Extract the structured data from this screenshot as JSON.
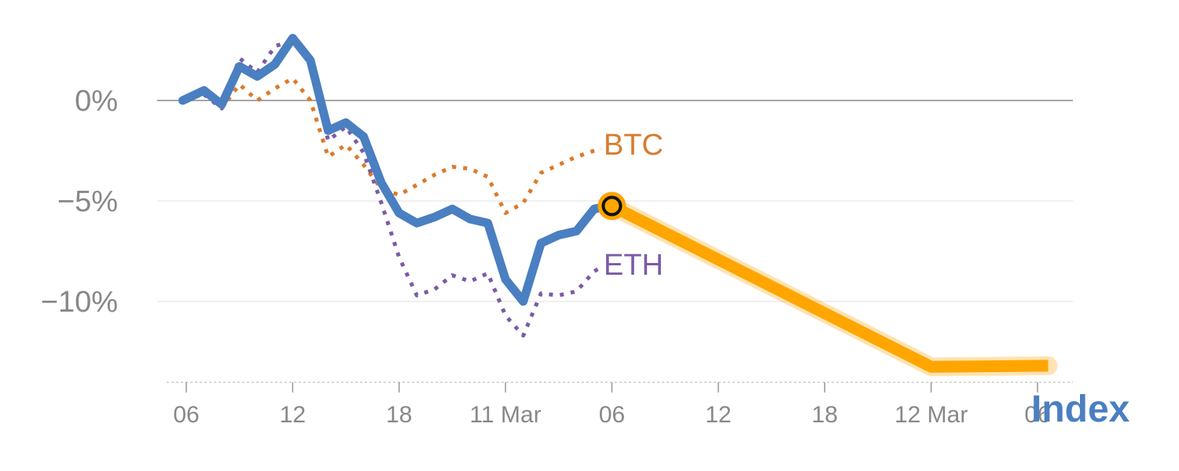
{
  "chart_data": {
    "type": "line",
    "title": "",
    "xlabel": "",
    "ylabel": "",
    "ylim": [
      -14,
      3
    ],
    "yticks": [
      {
        "value": 0,
        "label": "0%"
      },
      {
        "value": -5,
        "label": "−5%"
      },
      {
        "value": -10,
        "label": "−10%"
      }
    ],
    "xticks": [
      {
        "day": 0,
        "label": "06"
      },
      {
        "day": 6,
        "label": "12"
      },
      {
        "day": 12,
        "label": "18"
      },
      {
        "day": 18,
        "label": "11 Mar"
      },
      {
        "day": 24,
        "label": "06"
      },
      {
        "day": 30,
        "label": "12"
      },
      {
        "day": 36,
        "label": "18"
      },
      {
        "day": 42,
        "label": "12 Mar"
      },
      {
        "day": 48,
        "label": "06"
      }
    ],
    "xlim": [
      -1,
      50.5
    ],
    "series": [
      {
        "name": "Index",
        "style": "solid",
        "color": "#4a7fc1",
        "x": [
          -0.2,
          1,
          2,
          3,
          4,
          5,
          6,
          7,
          8,
          9,
          10,
          11,
          12,
          13,
          14,
          15,
          16,
          17,
          18,
          19,
          20,
          21,
          22,
          23,
          23.9
        ],
        "values": [
          0,
          0.5,
          -0.2,
          1.7,
          1.2,
          1.8,
          3.1,
          2.0,
          -1.5,
          -1.1,
          -1.8,
          -4.1,
          -5.6,
          -6.1,
          -5.8,
          -5.4,
          -5.9,
          -6.1,
          -8.9,
          -10.0,
          -7.1,
          -6.7,
          -6.5,
          -5.4,
          -5.25
        ]
      },
      {
        "name": "BTC",
        "style": "dotted",
        "color": "#d97b2e",
        "x": [
          -0.2,
          1,
          2,
          3,
          4,
          5,
          6,
          7,
          8,
          9,
          10,
          11,
          12,
          13,
          14,
          15,
          16,
          17,
          18,
          19,
          20,
          21,
          22,
          23,
          23.4
        ],
        "values": [
          0,
          0.3,
          -0.4,
          0.8,
          0.0,
          0.6,
          1.1,
          0.0,
          -2.8,
          -2.2,
          -3.2,
          -4.4,
          -4.7,
          -4.2,
          -3.7,
          -3.3,
          -3.4,
          -3.8,
          -5.6,
          -5.1,
          -3.6,
          -3.2,
          -2.8,
          -2.5,
          -2.4
        ]
      },
      {
        "name": "ETH",
        "style": "dotted",
        "color": "#7b5aa6",
        "x": [
          -0.2,
          1,
          2,
          3,
          4,
          5,
          6,
          7,
          8,
          9,
          10,
          11,
          12,
          13,
          14,
          15,
          16,
          17,
          18,
          19,
          20,
          21,
          22,
          23,
          23.4
        ],
        "values": [
          0,
          0.3,
          -0.4,
          2.1,
          1.4,
          2.7,
          3.0,
          2.0,
          -2.0,
          -1.3,
          -2.6,
          -5.1,
          -7.8,
          -9.7,
          -9.4,
          -8.7,
          -9.0,
          -8.6,
          -10.7,
          -11.7,
          -9.6,
          -9.7,
          -9.5,
          -8.5,
          -8.3
        ]
      },
      {
        "name": "projection",
        "style": "highlight",
        "color": "#ffa500",
        "x": [
          24,
          42,
          48.6
        ],
        "values": [
          -5.25,
          -13.25,
          -13.2
        ]
      }
    ],
    "marker": {
      "x": 24,
      "value": -5.25
    },
    "grid": true,
    "zero_line": true
  },
  "labels": {
    "btc": "BTC",
    "eth": "ETH",
    "index": "Index"
  },
  "colors": {
    "index": "#4a7fc1",
    "btc": "#d97b2e",
    "eth": "#7b5aa6",
    "highlight": "#ffa500",
    "axis_text": "#888888",
    "grid": "#e6e6e6",
    "zero_line": "#888888"
  }
}
